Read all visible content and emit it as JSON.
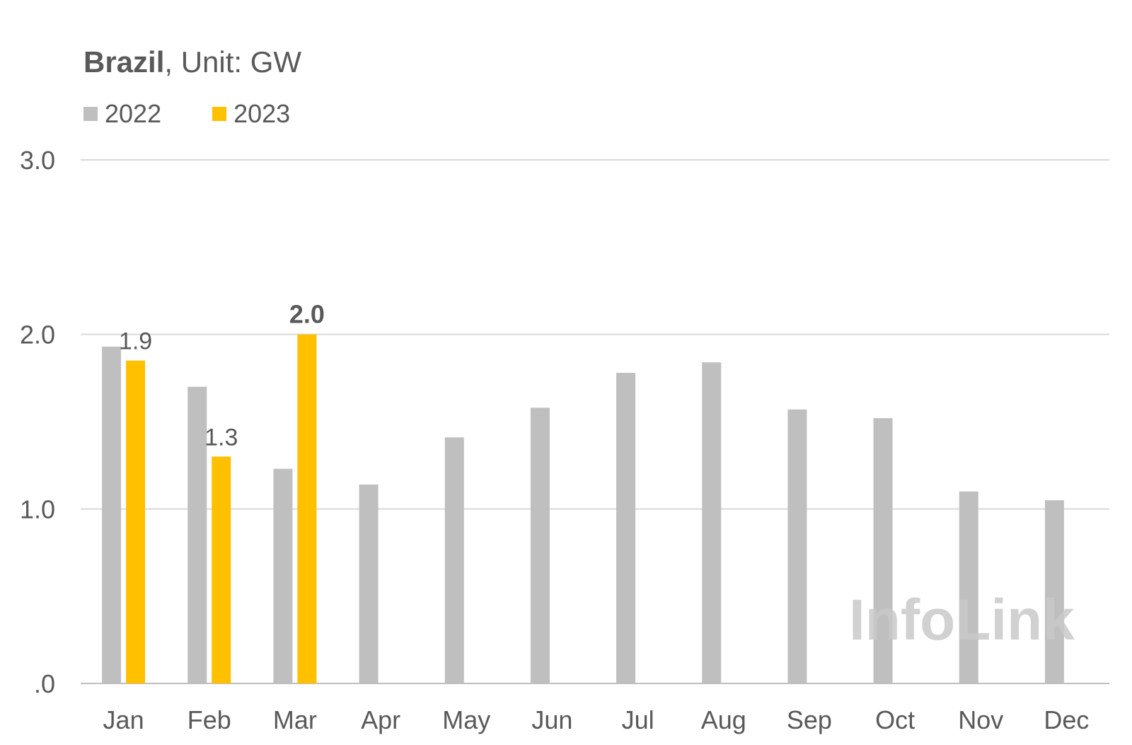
{
  "title": {
    "bold": "Brazil",
    "rest": ", Unit: GW"
  },
  "watermark": "InfoLink",
  "chart_data": {
    "type": "bar",
    "categories": [
      "Jan",
      "Feb",
      "Mar",
      "Apr",
      "May",
      "Jun",
      "Jul",
      "Aug",
      "Sep",
      "Oct",
      "Nov",
      "Dec"
    ],
    "series": [
      {
        "name": "2022",
        "color": "#bfbfbf",
        "values": [
          1.93,
          1.7,
          1.23,
          1.14,
          1.41,
          1.58,
          1.78,
          1.84,
          1.57,
          1.52,
          1.1,
          1.05
        ]
      },
      {
        "name": "2023",
        "color": "#ffc000",
        "values": [
          1.85,
          1.3,
          2.0,
          null,
          null,
          null,
          null,
          null,
          null,
          null,
          null,
          null
        ]
      }
    ],
    "data_labels": [
      {
        "series": "2023",
        "category": "Jan",
        "text": "1.9",
        "bold": false
      },
      {
        "series": "2023",
        "category": "Feb",
        "text": "1.3",
        "bold": false
      },
      {
        "series": "2023",
        "category": "Mar",
        "text": "2.0",
        "bold": true
      }
    ],
    "yticks": [
      0,
      1,
      2,
      3
    ],
    "ytick_labels": [
      ".0",
      "1.0",
      "2.0",
      "3.0"
    ],
    "ylim": [
      0,
      3
    ],
    "grid": true,
    "legend_position": "top-left",
    "xlabel": "",
    "ylabel": ""
  }
}
